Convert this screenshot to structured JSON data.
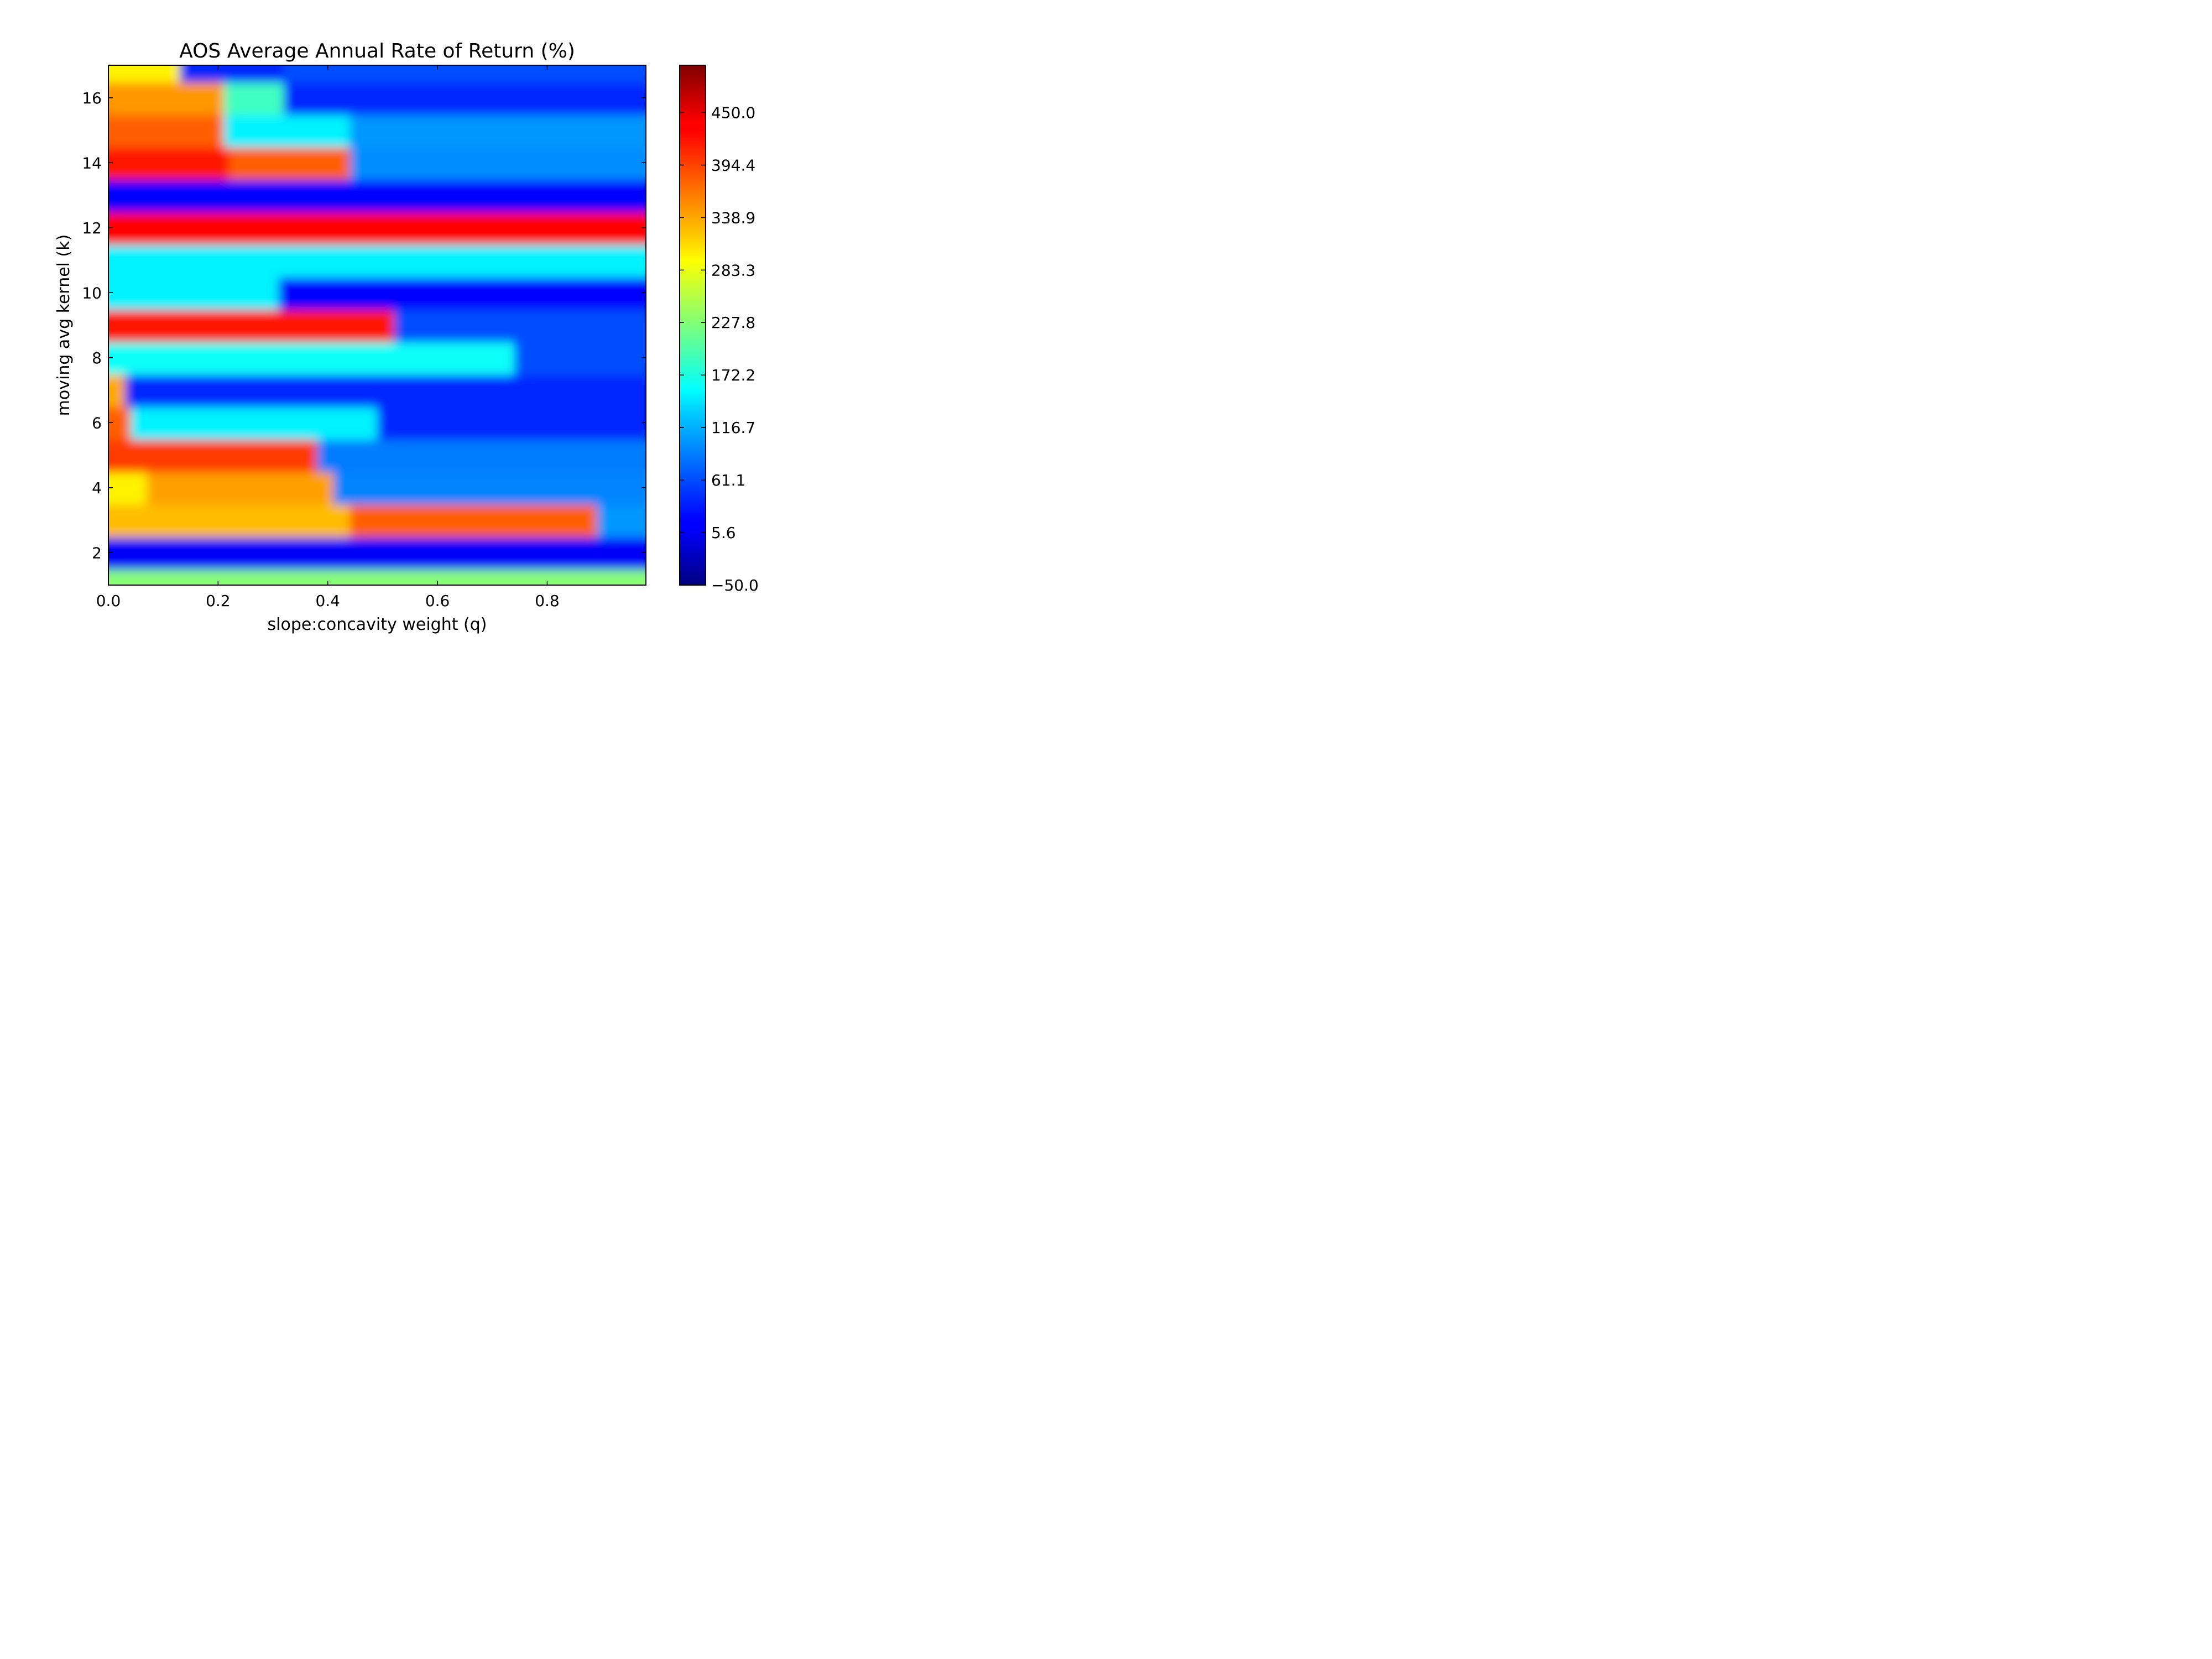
{
  "chart_data": {
    "type": "heatmap",
    "title": "AOS Average Annual Rate of Return (%)",
    "xlabel": "slope:concavity weight (q)",
    "ylabel": "moving avg kernel (k)",
    "xlim": [
      0.0,
      0.98
    ],
    "ylim": [
      1,
      17
    ],
    "x_ticks": [
      "0.0",
      "0.2",
      "0.4",
      "0.6",
      "0.8"
    ],
    "x_tick_values": [
      0.0,
      0.2,
      0.4,
      0.6,
      0.8
    ],
    "y_ticks": [
      "2",
      "4",
      "6",
      "8",
      "10",
      "12",
      "14",
      "16"
    ],
    "y_tick_values": [
      2,
      4,
      6,
      8,
      10,
      12,
      14,
      16
    ],
    "colorbar": {
      "min": -50.0,
      "max": 500.0,
      "colormap": "jet",
      "tick_labels": [
        "−50.0",
        "5.6",
        "61.1",
        "116.7",
        "172.2",
        "227.8",
        "283.3",
        "338.9",
        "394.4",
        "450.0"
      ],
      "tick_values": [
        -50.0,
        5.6,
        61.1,
        116.7,
        172.2,
        227.8,
        283.3,
        338.9,
        394.4,
        450.0
      ]
    },
    "rows": [
      {
        "k": 1,
        "segments": [
          {
            "q_end": 0.98,
            "value": 230
          }
        ]
      },
      {
        "k": 2,
        "segments": [
          {
            "q_end": 0.98,
            "value": 15
          }
        ]
      },
      {
        "k": 3,
        "segments": [
          {
            "q_end": 0.44,
            "value": 330
          },
          {
            "q_end": 0.89,
            "value": 380
          },
          {
            "q_end": 0.98,
            "value": 100
          }
        ]
      },
      {
        "k": 4,
        "segments": [
          {
            "q_end": 0.07,
            "value": 300
          },
          {
            "q_end": 0.41,
            "value": 345
          },
          {
            "q_end": 0.98,
            "value": 90
          }
        ]
      },
      {
        "k": 5,
        "segments": [
          {
            "q_end": 0.38,
            "value": 400
          },
          {
            "q_end": 0.98,
            "value": 85
          }
        ]
      },
      {
        "k": 6,
        "segments": [
          {
            "q_end": 0.04,
            "value": 380
          },
          {
            "q_end": 0.49,
            "value": 150
          },
          {
            "q_end": 0.98,
            "value": 40
          }
        ]
      },
      {
        "k": 7,
        "segments": [
          {
            "q_end": 0.03,
            "value": 340
          },
          {
            "q_end": 0.98,
            "value": 40
          }
        ]
      },
      {
        "k": 8,
        "segments": [
          {
            "q_end": 0.74,
            "value": 160
          },
          {
            "q_end": 0.98,
            "value": 60
          }
        ]
      },
      {
        "k": 9,
        "segments": [
          {
            "q_end": 0.52,
            "value": 420
          },
          {
            "q_end": 0.98,
            "value": 60
          }
        ]
      },
      {
        "k": 10,
        "segments": [
          {
            "q_end": 0.31,
            "value": 150
          },
          {
            "q_end": 0.98,
            "value": 20
          }
        ]
      },
      {
        "k": 11,
        "segments": [
          {
            "q_end": 0.98,
            "value": 150
          }
        ]
      },
      {
        "k": 12,
        "segments": [
          {
            "q_end": 0.98,
            "value": 430
          }
        ]
      },
      {
        "k": 13,
        "segments": [
          {
            "q_end": 0.98,
            "value": 20
          }
        ]
      },
      {
        "k": 14,
        "segments": [
          {
            "q_end": 0.22,
            "value": 420
          },
          {
            "q_end": 0.44,
            "value": 380
          },
          {
            "q_end": 0.98,
            "value": 95
          }
        ]
      },
      {
        "k": 15,
        "segments": [
          {
            "q_end": 0.21,
            "value": 380
          },
          {
            "q_end": 0.44,
            "value": 150
          },
          {
            "q_end": 0.98,
            "value": 100
          }
        ]
      },
      {
        "k": 16,
        "segments": [
          {
            "q_end": 0.21,
            "value": 350
          },
          {
            "q_end": 0.32,
            "value": 190
          },
          {
            "q_end": 0.98,
            "value": 40
          }
        ]
      },
      {
        "k": 17,
        "segments": [
          {
            "q_end": 0.13,
            "value": 300
          },
          {
            "q_end": 0.32,
            "value": 40
          },
          {
            "q_end": 0.98,
            "value": 60
          }
        ]
      }
    ]
  }
}
